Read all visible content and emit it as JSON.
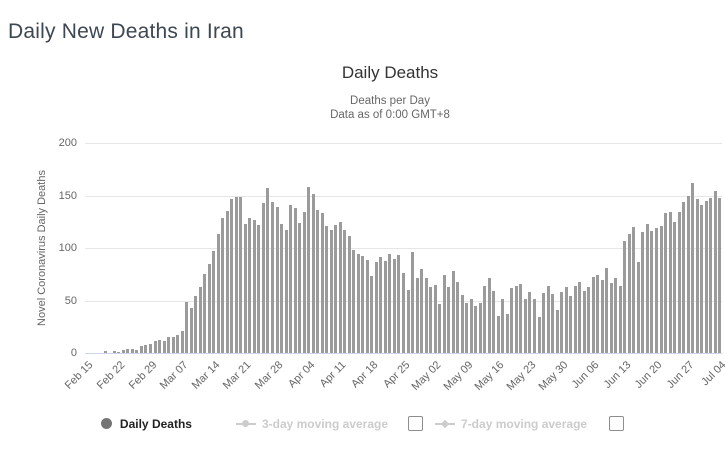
{
  "page": {
    "heading": "Daily New Deaths in Iran"
  },
  "chart": {
    "title": "Daily Deaths",
    "subtitle_line1": "Deaths per Day",
    "subtitle_line2": "Data as of 0:00 GMT+8",
    "y_axis_title": "Novel Coronavirus Daily Deaths",
    "colors": {
      "bar": "#9b9b9b",
      "gridline": "#e6e6e6",
      "axis_line": "#ccd6eb",
      "text_muted": "#666666",
      "legend_active": "#222222",
      "legend_disabled": "#cccccc",
      "legend_marker": "#757575",
      "heading": "#3d4752"
    }
  },
  "legend": {
    "items": [
      {
        "label": "Daily Deaths",
        "marker": "circle",
        "active": true,
        "checkbox": false
      },
      {
        "label": "3-day moving average",
        "marker": "line-circle",
        "active": false,
        "checkbox": true
      },
      {
        "label": "7-day moving average",
        "marker": "line-diamond",
        "active": false,
        "checkbox": true
      }
    ]
  },
  "chart_data": {
    "type": "bar",
    "title": "Daily Deaths",
    "subtitle": "Deaths per Day — Data as of 0:00 GMT+8",
    "xlabel": "",
    "ylabel": "Novel Coronavirus Daily Deaths",
    "ylim": [
      0,
      200
    ],
    "yticks": [
      0,
      50,
      100,
      150,
      200
    ],
    "grid": true,
    "legend_position": "bottom",
    "x_tick_labels": [
      "Feb 15",
      "Feb 22",
      "Feb 29",
      "Mar 07",
      "Mar 14",
      "Mar 21",
      "Mar 28",
      "Apr 04",
      "Apr 11",
      "Apr 18",
      "Apr 25",
      "May 02",
      "May 09",
      "May 16",
      "May 23",
      "May 30",
      "Jun 06",
      "Jun 13",
      "Jun 20",
      "Jun 27",
      "Jul 04"
    ],
    "x_tick_every": 7,
    "x": [
      "Feb 15",
      "Feb 16",
      "Feb 17",
      "Feb 18",
      "Feb 19",
      "Feb 20",
      "Feb 21",
      "Feb 22",
      "Feb 23",
      "Feb 24",
      "Feb 25",
      "Feb 26",
      "Feb 27",
      "Feb 28",
      "Feb 29",
      "Mar 01",
      "Mar 02",
      "Mar 03",
      "Mar 04",
      "Mar 05",
      "Mar 06",
      "Mar 07",
      "Mar 08",
      "Mar 09",
      "Mar 10",
      "Mar 11",
      "Mar 12",
      "Mar 13",
      "Mar 14",
      "Mar 15",
      "Mar 16",
      "Mar 17",
      "Mar 18",
      "Mar 19",
      "Mar 20",
      "Mar 21",
      "Mar 22",
      "Mar 23",
      "Mar 24",
      "Mar 25",
      "Mar 26",
      "Mar 27",
      "Mar 28",
      "Mar 29",
      "Mar 30",
      "Mar 31",
      "Apr 01",
      "Apr 02",
      "Apr 03",
      "Apr 04",
      "Apr 05",
      "Apr 06",
      "Apr 07",
      "Apr 08",
      "Apr 09",
      "Apr 10",
      "Apr 11",
      "Apr 12",
      "Apr 13",
      "Apr 14",
      "Apr 15",
      "Apr 16",
      "Apr 17",
      "Apr 18",
      "Apr 19",
      "Apr 20",
      "Apr 21",
      "Apr 22",
      "Apr 23",
      "Apr 24",
      "Apr 25",
      "Apr 26",
      "Apr 27",
      "Apr 28",
      "Apr 29",
      "Apr 30",
      "May 01",
      "May 02",
      "May 03",
      "May 04",
      "May 05",
      "May 06",
      "May 07",
      "May 08",
      "May 09",
      "May 10",
      "May 11",
      "May 12",
      "May 13",
      "May 14",
      "May 15",
      "May 16",
      "May 17",
      "May 18",
      "May 19",
      "May 20",
      "May 21",
      "May 22",
      "May 23",
      "May 24",
      "May 25",
      "May 26",
      "May 27",
      "May 28",
      "May 29",
      "May 30",
      "May 31",
      "Jun 01",
      "Jun 02",
      "Jun 03",
      "Jun 04",
      "Jun 05",
      "Jun 06",
      "Jun 07",
      "Jun 08",
      "Jun 09",
      "Jun 10",
      "Jun 11",
      "Jun 12",
      "Jun 13",
      "Jun 14",
      "Jun 15",
      "Jun 16",
      "Jun 17",
      "Jun 18",
      "Jun 19",
      "Jun 20",
      "Jun 21",
      "Jun 22",
      "Jun 23",
      "Jun 24",
      "Jun 25",
      "Jun 26",
      "Jun 27",
      "Jun 28",
      "Jun 29",
      "Jun 30",
      "Jul 01",
      "Jul 02",
      "Jul 03",
      "Jul 04"
    ],
    "values": [
      0,
      0,
      0,
      0,
      2,
      0,
      2,
      1,
      3,
      4,
      4,
      3,
      7,
      8,
      9,
      11,
      12,
      11,
      15,
      15,
      17,
      21,
      49,
      43,
      54,
      63,
      75,
      85,
      97,
      113,
      129,
      135,
      147,
      149,
      149,
      123,
      129,
      127,
      122,
      143,
      157,
      144,
      139,
      123,
      117,
      141,
      138,
      124,
      134,
      158,
      151,
      136,
      133,
      121,
      117,
      122,
      125,
      117,
      111,
      98,
      94,
      92,
      89,
      73,
      87,
      91,
      88,
      94,
      90,
      93,
      76,
      60,
      96,
      71,
      80,
      71,
      63,
      65,
      47,
      74,
      63,
      78,
      68,
      55,
      48,
      51,
      45,
      48,
      64,
      71,
      59,
      35,
      51,
      37,
      62,
      64,
      66,
      51,
      58,
      51,
      34,
      57,
      64,
      56,
      41,
      58,
      63,
      54,
      64,
      68,
      59,
      63,
      72,
      74,
      70,
      81,
      67,
      71,
      64,
      107,
      113,
      120,
      87,
      115,
      123,
      116,
      119,
      121,
      133,
      134,
      125,
      134,
      144,
      150,
      162,
      147,
      141,
      145,
      148,
      154,
      148
    ]
  }
}
